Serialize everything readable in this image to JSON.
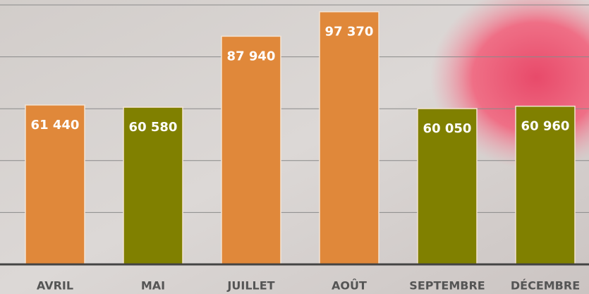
{
  "chart_data": {
    "type": "bar",
    "categories": [
      "AVRIL",
      "MAI",
      "JUILLET",
      "AOÛT",
      "SEPTEMBRE",
      "DÉCEMBRE"
    ],
    "values": [
      61440,
      60580,
      87940,
      97370,
      60050,
      60960
    ],
    "value_labels": [
      "61 440",
      "60 580",
      "87 940",
      "97 370",
      "60 050",
      "60 960"
    ],
    "colors": [
      "#e0883a",
      "#808000",
      "#e0883a",
      "#e0883a",
      "#808000",
      "#808000"
    ],
    "ylim": [
      0,
      100000
    ],
    "yticks": [
      20000,
      40000,
      60000,
      80000,
      100000
    ],
    "grid": true
  }
}
